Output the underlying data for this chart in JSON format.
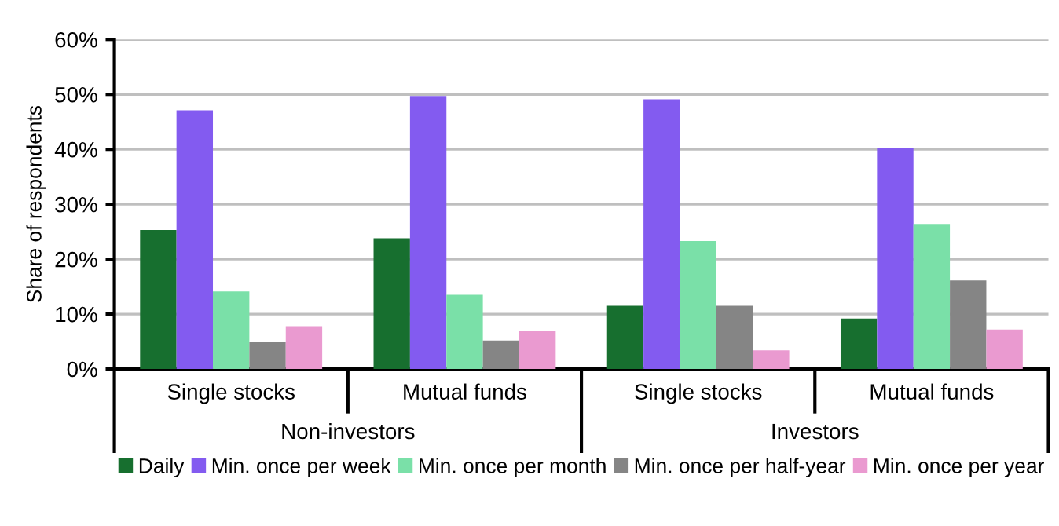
{
  "chart_data": {
    "type": "bar",
    "ylabel": "Share of respondents",
    "categories": [
      "Single stocks",
      "Mutual funds",
      "Single stocks",
      "Mutual funds"
    ],
    "annotations": [
      "Non-investors",
      "Investors"
    ],
    "series": [
      {
        "name": "Daily",
        "color": "#176f2f",
        "values": [
          25.3,
          23.8,
          11.5,
          9.2
        ]
      },
      {
        "name": "Min. once per week",
        "color": "#835bf0",
        "values": [
          47.1,
          49.7,
          49.1,
          40.2
        ]
      },
      {
        "name": "Min. once per month",
        "color": "#7ae0a8",
        "values": [
          14.1,
          13.5,
          23.3,
          26.4
        ]
      },
      {
        "name": "Min. once per half-year",
        "color": "#858585",
        "values": [
          4.9,
          5.2,
          11.5,
          16.1
        ]
      },
      {
        "name": "Min. once per year",
        "color": "#ea9ad0",
        "values": [
          7.8,
          6.9,
          3.4,
          7.2
        ]
      }
    ],
    "ylim": [
      0,
      60
    ],
    "yticks": [
      {
        "value": 0,
        "label": "0%"
      },
      {
        "value": 10,
        "label": "10%"
      },
      {
        "value": 20,
        "label": "20%"
      },
      {
        "value": 30,
        "label": "30%"
      },
      {
        "value": 40,
        "label": "40%"
      },
      {
        "value": 50,
        "label": "50%"
      },
      {
        "value": 60,
        "label": "60%"
      }
    ],
    "grid": "y",
    "legend": "bottom"
  }
}
